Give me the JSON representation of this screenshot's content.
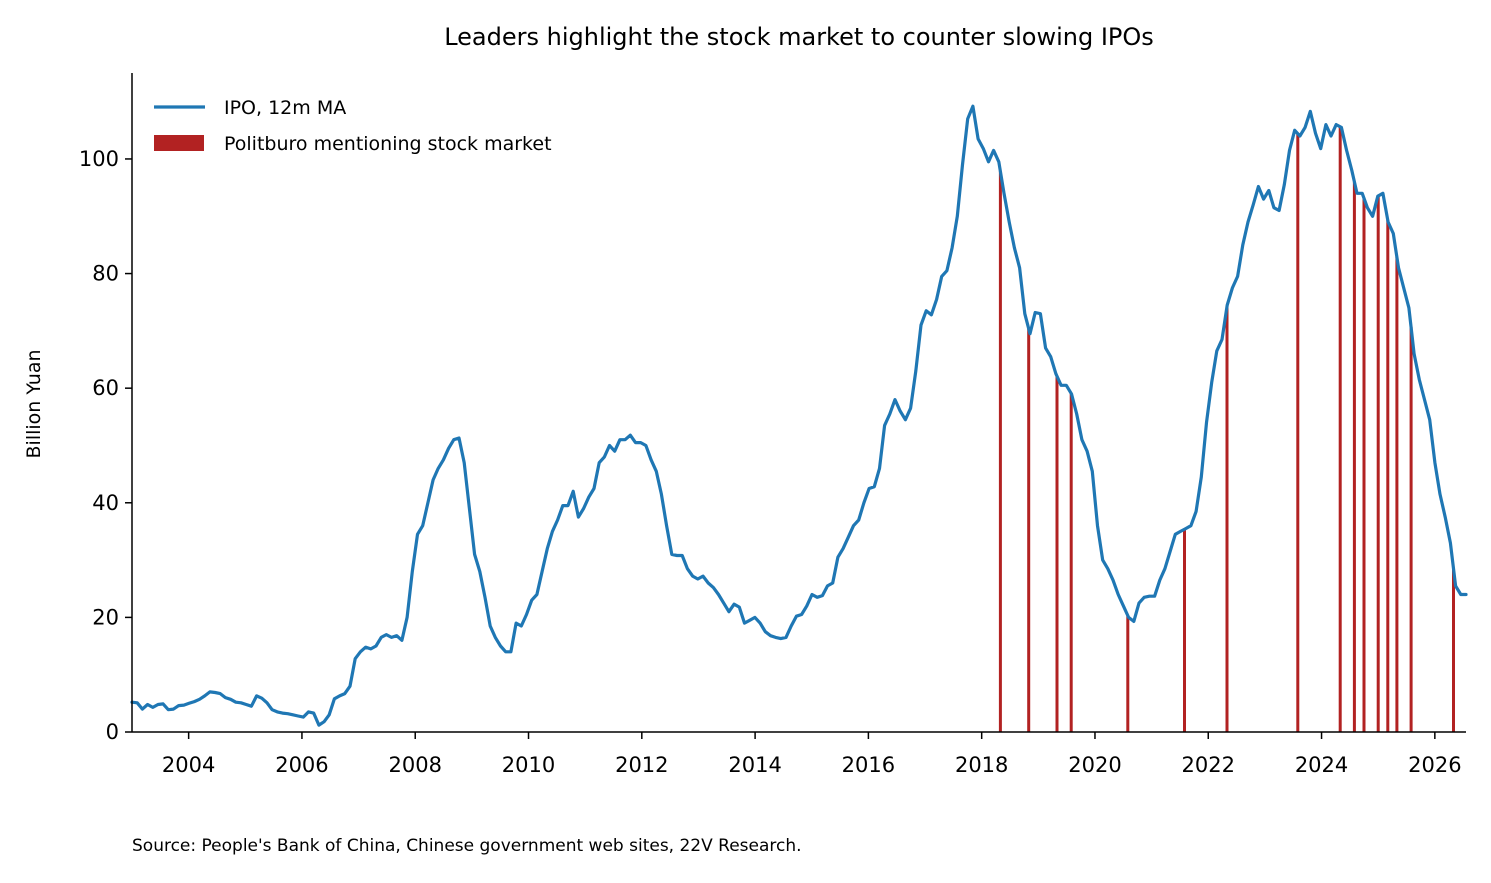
{
  "chart_data": {
    "type": "line",
    "title": "Leaders highlight the stock market to counter slowing IPOs",
    "xlabel": "",
    "ylabel": "Billion Yuan",
    "xlim": [
      2003.0,
      2026.55
    ],
    "ylim": [
      0,
      115
    ],
    "x_ticks": [
      "2004",
      "2006",
      "2008",
      "2010",
      "2012",
      "2014",
      "2016",
      "2018",
      "2020",
      "2022",
      "2024",
      "2026"
    ],
    "y_ticks": [
      "0",
      "20",
      "40",
      "60",
      "80",
      "100"
    ],
    "grid": false,
    "legend_position": "top-left",
    "legend": [
      "IPO, 12m MA",
      "Politburo mentioning stock market"
    ],
    "colors": {
      "line": "#1f77b4",
      "bars": "#b22222"
    },
    "series": [
      {
        "name": "IPO, 12m MA",
        "points": [
          [
            2003.0,
            5.2
          ],
          [
            2003.25,
            5.1
          ],
          [
            2003.33,
            4.0
          ],
          [
            2003.42,
            4.8
          ],
          [
            2003.67,
            4.3
          ],
          [
            2003.83,
            4.8
          ],
          [
            2003.92,
            4.9
          ],
          [
            2004.0,
            3.9
          ],
          [
            2004.17,
            4.0
          ],
          [
            2004.25,
            4.6
          ],
          [
            2004.33,
            4.7
          ],
          [
            2004.5,
            5.0
          ],
          [
            2004.75,
            5.3
          ],
          [
            2004.92,
            5.7
          ],
          [
            2005.08,
            6.3
          ],
          [
            2005.17,
            7.0
          ],
          [
            2005.33,
            6.9
          ],
          [
            2005.58,
            6.7
          ],
          [
            2005.67,
            6.0
          ],
          [
            2005.83,
            5.7
          ],
          [
            2006.0,
            5.2
          ],
          [
            2006.17,
            5.1
          ],
          [
            2006.25,
            4.8
          ],
          [
            2006.33,
            4.5
          ],
          [
            2006.42,
            6.3
          ],
          [
            2006.5,
            5.9
          ],
          [
            2006.58,
            5.1
          ],
          [
            2006.67,
            3.9
          ],
          [
            2006.83,
            3.5
          ],
          [
            2007.0,
            3.3
          ],
          [
            2007.17,
            3.2
          ],
          [
            2007.33,
            3.0
          ],
          [
            2007.5,
            2.8
          ],
          [
            2007.58,
            2.6
          ],
          [
            2007.75,
            3.5
          ],
          [
            2007.83,
            3.3
          ],
          [
            2007.92,
            1.2
          ],
          [
            2008.0,
            1.8
          ],
          [
            2008.17,
            3.0
          ],
          [
            2008.25,
            5.8
          ],
          [
            2008.42,
            6.3
          ],
          [
            2008.5,
            6.7
          ],
          [
            2008.58,
            8.0
          ],
          [
            2008.67,
            12.8
          ],
          [
            2008.75,
            14.0
          ],
          [
            2008.83,
            14.8
          ],
          [
            2008.92,
            14.5
          ],
          [
            2009.0,
            15.0
          ],
          [
            2009.08,
            16.5
          ],
          [
            2009.17,
            17.0
          ],
          [
            2009.25,
            16.5
          ],
          [
            2009.33,
            16.8
          ],
          [
            2009.42,
            16.0
          ],
          [
            2009.5,
            20.0
          ],
          [
            2009.58,
            28.0
          ],
          [
            2009.67,
            34.5
          ],
          [
            2009.75,
            36.0
          ],
          [
            2009.83,
            40.0
          ],
          [
            2009.92,
            44.0
          ],
          [
            2010.0,
            46.0
          ],
          [
            2010.08,
            47.5
          ],
          [
            2010.17,
            49.5
          ],
          [
            2010.25,
            51.0
          ],
          [
            2010.42,
            51.3
          ],
          [
            2010.5,
            47.0
          ],
          [
            2010.58,
            39.0
          ],
          [
            2010.67,
            31.0
          ],
          [
            2010.75,
            28.0
          ],
          [
            2010.83,
            23.5
          ],
          [
            2010.92,
            18.5
          ],
          [
            2011.0,
            16.5
          ],
          [
            2011.08,
            15.0
          ],
          [
            2011.17,
            14.0
          ],
          [
            2011.25,
            14.0
          ],
          [
            2011.33,
            19.0
          ],
          [
            2011.42,
            18.5
          ],
          [
            2011.5,
            20.5
          ],
          [
            2011.58,
            23.0
          ],
          [
            2011.67,
            24.0
          ],
          [
            2011.75,
            28.0
          ],
          [
            2011.83,
            32.0
          ],
          [
            2011.92,
            35.0
          ],
          [
            2012.0,
            37.0
          ],
          [
            2012.08,
            39.5
          ],
          [
            2012.17,
            39.5
          ],
          [
            2012.25,
            42.0
          ],
          [
            2012.33,
            37.5
          ],
          [
            2012.42,
            39.0
          ],
          [
            2012.5,
            41.0
          ],
          [
            2012.58,
            42.5
          ],
          [
            2012.67,
            47.0
          ],
          [
            2012.75,
            48.0
          ],
          [
            2012.83,
            50.0
          ],
          [
            2012.92,
            49.0
          ],
          [
            2013.0,
            51.0
          ],
          [
            2013.08,
            51.0
          ],
          [
            2013.17,
            51.8
          ],
          [
            2013.25,
            50.5
          ],
          [
            2013.33,
            50.5
          ],
          [
            2013.42,
            50.0
          ],
          [
            2013.5,
            47.5
          ],
          [
            2013.58,
            45.5
          ],
          [
            2013.67,
            41.5
          ],
          [
            2013.75,
            36.0
          ],
          [
            2013.83,
            31.0
          ],
          [
            2013.92,
            30.8
          ],
          [
            2014.0,
            30.8
          ],
          [
            2014.08,
            28.5
          ],
          [
            2014.17,
            27.2
          ],
          [
            2014.25,
            26.7
          ],
          [
            2014.33,
            27.2
          ],
          [
            2014.42,
            26.0
          ],
          [
            2014.5,
            25.2
          ],
          [
            2014.58,
            24.0
          ],
          [
            2014.67,
            22.5
          ],
          [
            2014.75,
            21.0
          ],
          [
            2014.83,
            22.3
          ],
          [
            2014.92,
            21.8
          ],
          [
            2015.0,
            19.0
          ],
          [
            2015.08,
            19.5
          ],
          [
            2015.17,
            20.0
          ],
          [
            2015.25,
            19.0
          ],
          [
            2015.33,
            17.5
          ],
          [
            2015.42,
            16.8
          ],
          [
            2015.5,
            16.5
          ],
          [
            2015.58,
            16.3
          ],
          [
            2015.67,
            16.5
          ],
          [
            2015.75,
            18.5
          ],
          [
            2015.83,
            20.2
          ],
          [
            2015.92,
            20.5
          ],
          [
            2016.0,
            22.0
          ],
          [
            2016.08,
            24.0
          ],
          [
            2016.17,
            23.5
          ],
          [
            2016.25,
            23.8
          ],
          [
            2016.33,
            25.5
          ],
          [
            2016.42,
            26.0
          ],
          [
            2016.5,
            30.5
          ],
          [
            2016.58,
            32.0
          ],
          [
            2016.67,
            34.0
          ],
          [
            2016.75,
            36.0
          ],
          [
            2016.83,
            37.0
          ],
          [
            2016.92,
            40.0
          ],
          [
            2017.0,
            42.5
          ],
          [
            2017.08,
            42.8
          ],
          [
            2017.17,
            46.0
          ],
          [
            2017.25,
            53.5
          ],
          [
            2017.33,
            55.5
          ],
          [
            2017.42,
            58.0
          ],
          [
            2017.5,
            56.0
          ],
          [
            2017.58,
            54.5
          ],
          [
            2017.67,
            56.5
          ],
          [
            2017.75,
            63.0
          ],
          [
            2017.83,
            71.0
          ],
          [
            2017.92,
            73.5
          ],
          [
            2018.0,
            72.8
          ],
          [
            2018.08,
            75.5
          ],
          [
            2018.17,
            79.5
          ],
          [
            2018.25,
            80.5
          ],
          [
            2018.33,
            84.5
          ],
          [
            2018.42,
            90.0
          ],
          [
            2018.5,
            99.0
          ],
          [
            2018.58,
            107.0
          ],
          [
            2018.67,
            109.2
          ],
          [
            2018.75,
            103.5
          ],
          [
            2018.83,
            101.8
          ],
          [
            2018.92,
            99.5
          ],
          [
            2019.0,
            101.5
          ],
          [
            2019.08,
            99.5
          ],
          [
            2019.17,
            94.0
          ],
          [
            2019.25,
            89.0
          ],
          [
            2019.33,
            84.5
          ],
          [
            2019.42,
            81.0
          ],
          [
            2019.5,
            73.0
          ],
          [
            2019.58,
            69.5
          ],
          [
            2019.67,
            73.2
          ],
          [
            2019.75,
            73.0
          ],
          [
            2019.83,
            67.0
          ],
          [
            2019.92,
            65.5
          ],
          [
            2020.0,
            62.5
          ],
          [
            2020.08,
            60.5
          ],
          [
            2020.17,
            60.5
          ],
          [
            2020.25,
            59.0
          ],
          [
            2020.33,
            55.5
          ],
          [
            2020.42,
            51.0
          ],
          [
            2020.5,
            49.0
          ],
          [
            2020.58,
            45.5
          ],
          [
            2020.67,
            36.0
          ],
          [
            2020.75,
            30.0
          ],
          [
            2020.83,
            28.5
          ],
          [
            2020.92,
            26.5
          ],
          [
            2021.0,
            24.0
          ],
          [
            2021.08,
            22.0
          ],
          [
            2021.17,
            20.0
          ],
          [
            2021.25,
            19.3
          ],
          [
            2021.33,
            22.5
          ],
          [
            2021.42,
            23.5
          ],
          [
            2021.5,
            23.7
          ],
          [
            2021.58,
            23.7
          ],
          [
            2021.67,
            26.5
          ],
          [
            2021.75,
            28.5
          ],
          [
            2021.83,
            31.5
          ],
          [
            2021.92,
            34.5
          ],
          [
            2022.0,
            35.0
          ],
          [
            2022.08,
            35.5
          ],
          [
            2022.17,
            36.0
          ],
          [
            2022.25,
            38.5
          ],
          [
            2022.33,
            44.5
          ],
          [
            2022.42,
            54.0
          ],
          [
            2022.5,
            61.0
          ],
          [
            2022.58,
            66.5
          ],
          [
            2022.67,
            68.5
          ],
          [
            2022.75,
            74.5
          ],
          [
            2022.83,
            77.5
          ],
          [
            2022.92,
            79.5
          ],
          [
            2023.0,
            85.0
          ],
          [
            2023.08,
            89.0
          ],
          [
            2023.17,
            92.0
          ],
          [
            2023.25,
            95.2
          ],
          [
            2023.33,
            93.0
          ],
          [
            2023.42,
            94.5
          ],
          [
            2023.5,
            91.5
          ],
          [
            2023.58,
            91.0
          ],
          [
            2023.67,
            95.5
          ],
          [
            2023.75,
            101.5
          ],
          [
            2023.83,
            105.0
          ],
          [
            2023.92,
            104.0
          ],
          [
            2024.0,
            105.5
          ],
          [
            2024.08,
            108.3
          ],
          [
            2024.17,
            104.5
          ],
          [
            2024.25,
            101.8
          ],
          [
            2024.33,
            106.0
          ],
          [
            2024.42,
            104.0
          ],
          [
            2024.5,
            106.0
          ],
          [
            2024.58,
            105.5
          ],
          [
            2024.67,
            101.5
          ],
          [
            2024.75,
            98.0
          ],
          [
            2024.83,
            94.0
          ],
          [
            2024.92,
            94.0
          ],
          [
            2025.0,
            91.5
          ],
          [
            2025.08,
            90.0
          ],
          [
            2025.17,
            93.5
          ],
          [
            2025.25,
            94.0
          ],
          [
            2025.33,
            89.0
          ],
          [
            2025.42,
            87.0
          ],
          [
            2025.5,
            81.0
          ],
          [
            2025.58,
            77.5
          ],
          [
            2025.67,
            74.0
          ],
          [
            2025.75,
            66.0
          ],
          [
            2025.83,
            61.5
          ],
          [
            2025.92,
            58.0
          ],
          [
            2026.0,
            54.5
          ],
          [
            2026.08,
            47.0
          ],
          [
            2026.17,
            41.5
          ],
          [
            2026.25,
            37.5
          ],
          [
            2026.33,
            33.0
          ],
          [
            2026.42,
            25.5
          ],
          [
            2026.5,
            24.0
          ],
          [
            2026.55,
            24.0
          ]
        ]
      }
    ],
    "note_on_points": "Points above are listed with a uniform index; the displayed x positions follow a linear mapping of 2003.0–2026.55 over the series index range.",
    "bars": {
      "name": "Politburo mentioning stock market",
      "x": [
        2018.33,
        2018.83,
        2019.33,
        2019.58,
        2020.58,
        2021.58,
        2022.33,
        2023.58,
        2024.33,
        2024.58,
        2024.75,
        2025.0,
        2025.17,
        2025.33,
        2025.58,
        2026.33
      ]
    }
  },
  "source": "Source: People's Bank of China, Chinese government web sites, 22V Research."
}
